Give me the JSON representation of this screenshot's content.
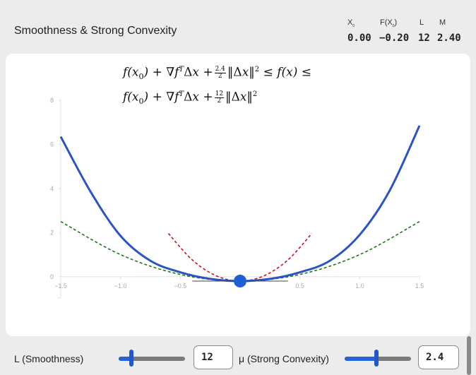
{
  "app": {
    "title": "Smoothness & Strong Convexity"
  },
  "stats": [
    {
      "key": "x0",
      "label": "X",
      "sub": "0",
      "value": "0.00"
    },
    {
      "key": "fx0",
      "label": "F(X",
      "sub": "0",
      "suffix": ")",
      "value": "−0.20"
    },
    {
      "key": "L",
      "label": "L",
      "sub": "",
      "value": "12"
    },
    {
      "key": "M",
      "label": "M",
      "sub": "",
      "value": "2.40"
    }
  ],
  "formula": {
    "lower_coef_num": "2.4",
    "lower_coef_den": "2",
    "upper_coef_num": "12",
    "upper_coef_den": "2"
  },
  "controls": {
    "L": {
      "label": "L (Smoothness)",
      "value": "12",
      "fraction": 0.19
    },
    "mu": {
      "label": "μ (Strong Convexity)",
      "value": "2.4",
      "fraction": 0.48
    }
  },
  "colors": {
    "function_curve": "#2c55c4",
    "upper_bound": "#c8102e",
    "lower_bound": "#1b7a1b",
    "point": "#1f5fd6",
    "accent": "#2563d9"
  },
  "chart_data": {
    "type": "line",
    "x_ticks": [
      "−1.5",
      "−1.0",
      "−0.5",
      "0.5",
      "1.0",
      "1.5"
    ],
    "y_ticks": [
      "0",
      "2",
      "4",
      "6",
      "8"
    ],
    "xlim": [
      -1.5,
      1.5
    ],
    "ylim": [
      -0.2,
      8
    ],
    "x0": 0.0,
    "fx0": -0.2,
    "L": 12,
    "mu": 2.4,
    "series": [
      {
        "role": "f",
        "x": [
          -1.5,
          -1.25,
          -1.0,
          -0.75,
          -0.5,
          -0.25,
          0,
          0.25,
          0.5,
          0.75,
          1.0,
          1.25,
          1.5
        ],
        "values": [
          6.35,
          3.85,
          1.85,
          0.72,
          0.2,
          -0.1,
          -0.2,
          -0.1,
          0.2,
          0.72,
          1.9,
          3.9,
          6.85
        ]
      },
      {
        "role": "upper",
        "x": [
          -0.6,
          -0.4,
          -0.2,
          0,
          0.2,
          0.4,
          0.6
        ],
        "values": [
          1.96,
          0.76,
          0.04,
          -0.2,
          0.04,
          0.76,
          1.96
        ]
      },
      {
        "role": "lower",
        "x": [
          -1.5,
          -1.0,
          -0.5,
          0,
          0.5,
          1.0,
          1.5
        ],
        "values": [
          2.5,
          1.0,
          0.1,
          -0.2,
          0.1,
          1.0,
          2.5
        ]
      }
    ],
    "grid": false,
    "legend": "none"
  }
}
